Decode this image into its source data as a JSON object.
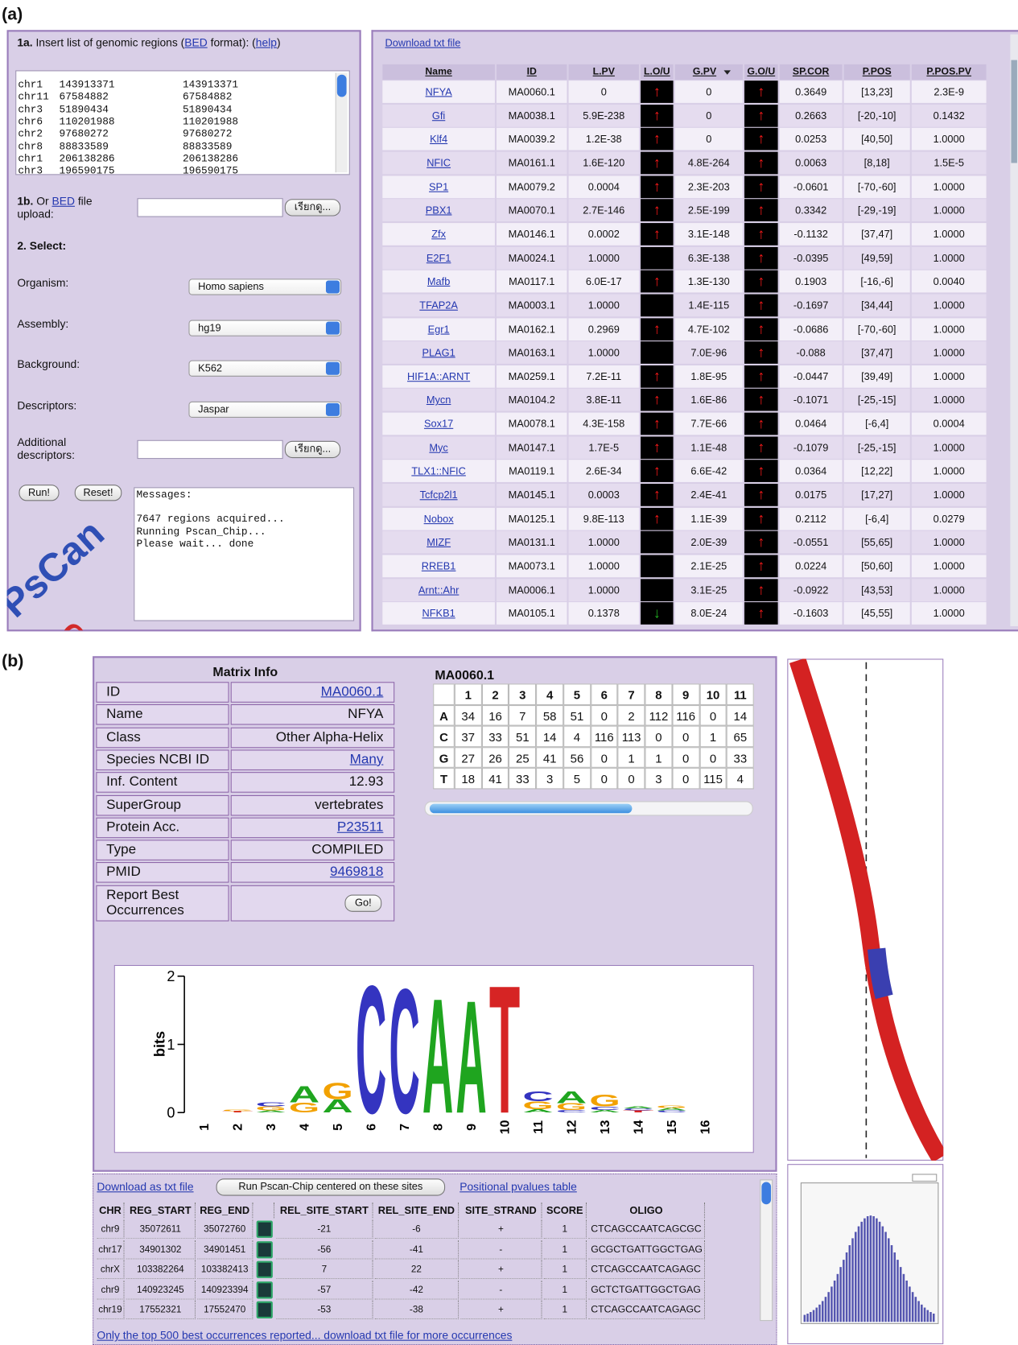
{
  "panel_a": {
    "label": "(a)",
    "form": {
      "step_1a": {
        "number": "1a.",
        "text": "Insert list of genomic regions (",
        "link": "BED",
        "text_after": "format): (",
        "help": "help",
        "close": ")"
      },
      "regions": [
        [
          "chr1",
          "143913371",
          "143913371"
        ],
        [
          "chr11",
          "67584882",
          "67584882"
        ],
        [
          "chr3",
          "51890434",
          "51890434"
        ],
        [
          "chr6",
          "110201988",
          "110201988"
        ],
        [
          "chr2",
          "97680272",
          "97680272"
        ],
        [
          "chr8",
          "88833589",
          "88833589"
        ],
        [
          "chr1",
          "206138286",
          "206138286"
        ],
        [
          "chr3",
          "196590175",
          "196590175"
        ]
      ],
      "step_1b": {
        "number": "1b.",
        "text": "Or",
        "link": "BED",
        "text_after": "file upload:",
        "button": "เรียกดู..."
      },
      "step_2": "2. Select:",
      "fields": [
        {
          "label": "Organism:",
          "value": "Homo sapiens"
        },
        {
          "label": "Assembly:",
          "value": "hg19"
        },
        {
          "label": "Background:",
          "value": "K562"
        },
        {
          "label": "Descriptors:",
          "value": "Jaspar"
        }
      ],
      "additional": {
        "label": "Additional descriptors:",
        "button": "เรียกดู..."
      },
      "run": "Run!",
      "reset": "Reset!",
      "messages": [
        "Messages:",
        "7647 regions acquired...",
        "Running Pscan_Chip...",
        "Please wait... done"
      ],
      "logo": [
        "PsCan",
        "ChIP"
      ]
    },
    "results": {
      "download": "Download txt file",
      "columns": [
        "Name",
        "ID",
        "L.PV",
        "L.O/U",
        "G.PV",
        "G.O/U",
        "SP.COR",
        "P.POS",
        "P.POS.PV"
      ],
      "rows": [
        [
          "NFYA",
          "MA0060.1",
          "0",
          "↑",
          "0",
          "↑",
          "0.3649",
          "[13,23]",
          "2.3E-9"
        ],
        [
          "Gfi",
          "MA0038.1",
          "5.9E-238",
          "↑",
          "0",
          "↑",
          "0.2663",
          "[-20,-10]",
          "0.1432"
        ],
        [
          "Klf4",
          "MA0039.2",
          "1.2E-38",
          "↑",
          "0",
          "↑",
          "0.0253",
          "[40,50]",
          "1.0000"
        ],
        [
          "NFIC",
          "MA0161.1",
          "1.6E-120",
          "↑",
          "4.8E-264",
          "↑",
          "0.0063",
          "[8,18]",
          "1.5E-5"
        ],
        [
          "SP1",
          "MA0079.2",
          "0.0004",
          "↑",
          "2.3E-203",
          "↑",
          "-0.0601",
          "[-70,-60]",
          "1.0000"
        ],
        [
          "PBX1",
          "MA0070.1",
          "2.7E-146",
          "↑",
          "2.5E-199",
          "↑",
          "0.3342",
          "[-29,-19]",
          "1.0000"
        ],
        [
          "Zfx",
          "MA0146.1",
          "0.0002",
          "↑",
          "3.1E-148",
          "↑",
          "-0.1132",
          "[37,47]",
          "1.0000"
        ],
        [
          "E2F1",
          "MA0024.1",
          "1.0000",
          null,
          "6.3E-138",
          "↑",
          "-0.0395",
          "[49,59]",
          "1.0000"
        ],
        [
          "Mafb",
          "MA0117.1",
          "6.0E-17",
          "↑",
          "1.3E-130",
          "↑",
          "0.1903",
          "[-16,-6]",
          "0.0040"
        ],
        [
          "TFAP2A",
          "MA0003.1",
          "1.0000",
          null,
          "1.4E-115",
          "↑",
          "-0.1697",
          "[34,44]",
          "1.0000"
        ],
        [
          "Egr1",
          "MA0162.1",
          "0.2969",
          "↑",
          "4.7E-102",
          "↑",
          "-0.0686",
          "[-70,-60]",
          "1.0000"
        ],
        [
          "PLAG1",
          "MA0163.1",
          "1.0000",
          null,
          "7.0E-96",
          "↑",
          "-0.088",
          "[37,47]",
          "1.0000"
        ],
        [
          "HIF1A::ARNT",
          "MA0259.1",
          "7.2E-11",
          "↑",
          "1.8E-95",
          "↑",
          "-0.0447",
          "[39,49]",
          "1.0000"
        ],
        [
          "Mycn",
          "MA0104.2",
          "3.8E-11",
          "↑",
          "1.6E-86",
          "↑",
          "-0.1071",
          "[-25,-15]",
          "1.0000"
        ],
        [
          "Sox17",
          "MA0078.1",
          "4.3E-158",
          "↑",
          "7.7E-66",
          "↑",
          "0.0464",
          "[-6,4]",
          "0.0004"
        ],
        [
          "Myc",
          "MA0147.1",
          "1.7E-5",
          "↑",
          "1.1E-48",
          "↑",
          "-0.1079",
          "[-25,-15]",
          "1.0000"
        ],
        [
          "TLX1::NFIC",
          "MA0119.1",
          "2.6E-34",
          "↑",
          "6.6E-42",
          "↑",
          "0.0364",
          "[12,22]",
          "1.0000"
        ],
        [
          "Tcfcp2l1",
          "MA0145.1",
          "0.0003",
          "↑",
          "2.4E-41",
          "↑",
          "0.0175",
          "[17,27]",
          "1.0000"
        ],
        [
          "Nobox",
          "MA0125.1",
          "9.8E-113",
          "↑",
          "1.1E-39",
          "↑",
          "0.2112",
          "[-6,4]",
          "0.0279"
        ],
        [
          "MIZF",
          "MA0131.1",
          "1.0000",
          null,
          "2.0E-39",
          "↑",
          "-0.0551",
          "[55,65]",
          "1.0000"
        ],
        [
          "RREB1",
          "MA0073.1",
          "1.0000",
          null,
          "2.1E-25",
          "↑",
          "0.0224",
          "[50,60]",
          "1.0000"
        ],
        [
          "Arnt::Ahr",
          "MA0006.1",
          "1.0000",
          null,
          "3.1E-25",
          "↑",
          "-0.0922",
          "[43,53]",
          "1.0000"
        ],
        [
          "NFKB1",
          "MA0105.1",
          "0.1378",
          "↓",
          "8.0E-24",
          "↑",
          "-0.1603",
          "[45,55]",
          "1.0000"
        ]
      ]
    }
  },
  "panel_b": {
    "label": "(b)",
    "matrix_info": {
      "title": "Matrix Info",
      "rows": [
        {
          "key": "ID",
          "value": "MA0060.1",
          "link": true
        },
        {
          "key": "Name",
          "value": "NFYA",
          "link": false
        },
        {
          "key": "Class",
          "value": "Other Alpha-Helix",
          "link": false
        },
        {
          "key": "Species NCBI ID",
          "value": "Many",
          "link": true
        },
        {
          "key": "Inf. Content",
          "value": "12.93",
          "link": false
        },
        {
          "key": "SuperGroup",
          "value": "vertebrates",
          "link": false
        },
        {
          "key": "Protein Acc.",
          "value": "P23511",
          "link": true
        },
        {
          "key": "Type",
          "value": "COMPILED",
          "link": false
        },
        {
          "key": "PMID",
          "value": "9469818",
          "link": true
        }
      ],
      "report": {
        "label": "Report Best Occurrences",
        "button": "Go!"
      }
    },
    "matrix": {
      "title": "MA0060.1",
      "columns": [
        1,
        2,
        3,
        4,
        5,
        6,
        7,
        8,
        9,
        10,
        11
      ],
      "rows": [
        {
          "base": "A",
          "counts": [
            34,
            16,
            7,
            58,
            51,
            0,
            2,
            112,
            116,
            0,
            14
          ]
        },
        {
          "base": "C",
          "counts": [
            37,
            33,
            51,
            14,
            4,
            116,
            113,
            0,
            0,
            1,
            65
          ]
        },
        {
          "base": "G",
          "counts": [
            27,
            26,
            25,
            41,
            56,
            0,
            1,
            1,
            0,
            0,
            33
          ]
        },
        {
          "base": "T",
          "counts": [
            18,
            41,
            33,
            3,
            5,
            0,
            0,
            3,
            0,
            115,
            4
          ]
        }
      ]
    },
    "logo": {
      "type": "sequence_logo",
      "y_label": "bits",
      "ylim": [
        0,
        2
      ],
      "yticks": [
        0,
        1,
        2
      ],
      "positions": [
        1,
        2,
        3,
        4,
        5,
        6,
        7,
        8,
        9,
        10,
        11,
        12,
        13,
        14,
        15,
        16
      ],
      "colors": {
        "A": "#1fa51f",
        "C": "#3434c0",
        "G": "#f2a100",
        "T": "#d62424"
      },
      "stacks": [
        [],
        [
          {
            "letter": "T",
            "height": 0.02
          },
          {
            "letter": "G",
            "height": 0.02
          }
        ],
        [
          {
            "letter": "A",
            "height": 0.03
          },
          {
            "letter": "G",
            "height": 0.06
          },
          {
            "letter": "C",
            "height": 0.06
          }
        ],
        [
          {
            "letter": "G",
            "height": 0.15
          },
          {
            "letter": "A",
            "height": 0.25
          }
        ],
        [
          {
            "letter": "A",
            "height": 0.2
          },
          {
            "letter": "G",
            "height": 0.25
          }
        ],
        [
          {
            "letter": "C",
            "height": 1.95
          }
        ],
        [
          {
            "letter": "C",
            "height": 1.9
          }
        ],
        [
          {
            "letter": "A",
            "height": 1.75
          }
        ],
        [
          {
            "letter": "A",
            "height": 1.72
          }
        ],
        [
          {
            "letter": "T",
            "height": 1.95
          }
        ],
        [
          {
            "letter": "A",
            "height": 0.05
          },
          {
            "letter": "G",
            "height": 0.12
          },
          {
            "letter": "C",
            "height": 0.15
          }
        ],
        [
          {
            "letter": "C",
            "height": 0.04
          },
          {
            "letter": "G",
            "height": 0.1
          },
          {
            "letter": "A",
            "height": 0.18
          }
        ],
        [
          {
            "letter": "A",
            "height": 0.04
          },
          {
            "letter": "C",
            "height": 0.05
          },
          {
            "letter": "G",
            "height": 0.18
          }
        ],
        [
          {
            "letter": "T",
            "height": 0.03
          },
          {
            "letter": "C",
            "height": 0.03
          },
          {
            "letter": "A",
            "height": 0.03
          }
        ],
        [
          {
            "letter": "C",
            "height": 0.03
          },
          {
            "letter": "A",
            "height": 0.04
          },
          {
            "letter": "G",
            "height": 0.04
          }
        ],
        []
      ]
    },
    "occurrences": {
      "download": "Download as txt file",
      "button": "Run Pscan-Chip centered on these sites",
      "pvalues": "Positional pvalues table",
      "columns": [
        "CHR",
        "REG_START",
        "REG_END",
        "REL_SITE_START",
        "REL_SITE_END",
        "SITE_STRAND",
        "SCORE",
        "OLIGO"
      ],
      "rows": [
        [
          "chr9",
          "35072611",
          "35072760",
          "-21",
          "-6",
          "+",
          "1",
          "CTCAGCCAATCAGCGC"
        ],
        [
          "chr17",
          "34901302",
          "34901451",
          "-56",
          "-41",
          "-",
          "1",
          "GCGCTGATTGGCTGAG"
        ],
        [
          "chrX",
          "103382264",
          "103382413",
          "7",
          "22",
          "+",
          "1",
          "CTCAGCCAATCAGAGC"
        ],
        [
          "chr9",
          "140923245",
          "140923394",
          "-57",
          "-42",
          "-",
          "1",
          "GCTCTGATTGGCTGAG"
        ],
        [
          "chr19",
          "17552321",
          "17552470",
          "-53",
          "-38",
          "+",
          "1",
          "CTCAGCCAATCAGAGC"
        ]
      ],
      "footer": "Only the top 500 best occurrences reported... download txt file for more occurrences"
    }
  }
}
